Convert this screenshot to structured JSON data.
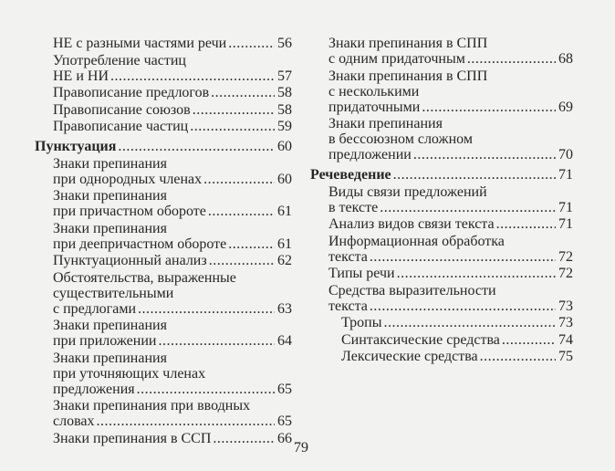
{
  "left_column": [
    {
      "level": "sub",
      "lines": [
        "НЕ с разными частями речи"
      ],
      "page": "56"
    },
    {
      "level": "sub",
      "lines": [
        "Употребление частиц",
        "НЕ и НИ"
      ],
      "page": "57"
    },
    {
      "level": "sub",
      "lines": [
        "Правописание предлогов"
      ],
      "page": "58"
    },
    {
      "level": "sub",
      "lines": [
        "Правописание союзов"
      ],
      "page": "58"
    },
    {
      "level": "sub",
      "lines": [
        "Правописание частиц"
      ],
      "page": "59"
    },
    {
      "level": "section",
      "lines": [
        "Пунктуация"
      ],
      "page": "60"
    },
    {
      "level": "sub",
      "lines": [
        "Знаки препинания",
        "при однородных членах"
      ],
      "page": "60"
    },
    {
      "level": "sub",
      "lines": [
        "Знаки препинания",
        "при причастном обороте"
      ],
      "page": "61"
    },
    {
      "level": "sub",
      "lines": [
        "Знаки препинания",
        "при деепричастном обороте"
      ],
      "page": "61"
    },
    {
      "level": "sub",
      "lines": [
        "Пунктуационный анализ"
      ],
      "page": "62"
    },
    {
      "level": "sub",
      "lines": [
        "Обстоятельства, выраженные",
        "существительными",
        "с предлогами"
      ],
      "page": "63"
    },
    {
      "level": "sub",
      "lines": [
        "Знаки препинания",
        "при приложении"
      ],
      "page": "64"
    },
    {
      "level": "sub",
      "lines": [
        "Знаки препинания",
        "при уточняющих членах",
        "предложения"
      ],
      "page": "65"
    },
    {
      "level": "sub",
      "lines": [
        "Знаки препинания при вводных",
        "словах"
      ],
      "page": "65"
    },
    {
      "level": "sub",
      "lines": [
        "Знаки препинания в ССП"
      ],
      "page": "66"
    }
  ],
  "right_column": [
    {
      "level": "sub",
      "lines": [
        "Знаки препинания в СПП",
        "с одним придаточным"
      ],
      "page": "68"
    },
    {
      "level": "sub",
      "lines": [
        "Знаки препинания в СПП",
        "с несколькими",
        "придаточными"
      ],
      "page": "69"
    },
    {
      "level": "sub",
      "lines": [
        "Знаки препинания",
        "в бессоюзном сложном",
        "предложении"
      ],
      "page": "70"
    },
    {
      "level": "section",
      "lines": [
        "Речеведение"
      ],
      "page": "71"
    },
    {
      "level": "sub",
      "lines": [
        "Виды связи предложений",
        "в тексте"
      ],
      "page": "71"
    },
    {
      "level": "sub",
      "lines": [
        "Анализ видов связи текста"
      ],
      "page": "71"
    },
    {
      "level": "sub",
      "lines": [
        "Информационная обработка",
        "текста"
      ],
      "page": "72"
    },
    {
      "level": "sub",
      "lines": [
        "Типы речи"
      ],
      "page": "72"
    },
    {
      "level": "sub",
      "lines": [
        "Средства выразительности",
        "текста"
      ],
      "page": "73"
    },
    {
      "level": "subsub",
      "lines": [
        "Тропы"
      ],
      "page": "73"
    },
    {
      "level": "subsub",
      "lines": [
        "Синтаксические средства"
      ],
      "page": "74"
    },
    {
      "level": "subsub",
      "lines": [
        "Лексические средства"
      ],
      "page": "75"
    }
  ],
  "page_number": "79"
}
